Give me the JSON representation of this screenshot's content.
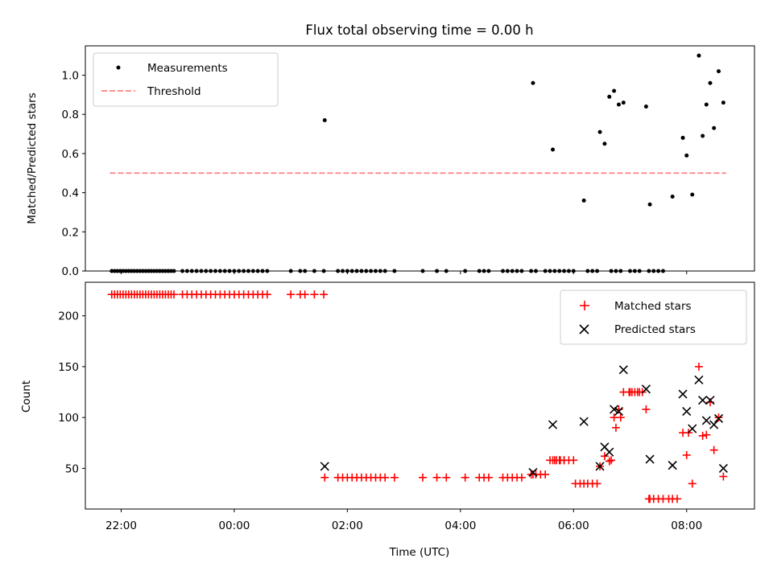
{
  "chart_data": [
    {
      "type": "scatter",
      "title": "Flux total observing time = 0.00 h",
      "xlabel": "",
      "ylabel": "Matched/Predicted stars",
      "xlim": [
        "21:22",
        "09:12"
      ],
      "ylim": [
        0,
        1.15
      ],
      "yticks": [
        0.0,
        0.2,
        0.4,
        0.6,
        0.8,
        1.0
      ],
      "ytick_labels": [
        "0.0",
        "0.2",
        "0.4",
        "0.6",
        "0.8",
        "1.0"
      ],
      "legend": {
        "placement": "upper-left",
        "entries": [
          {
            "label": "Measurements",
            "marker": "dot",
            "color": "#000000"
          },
          {
            "label": "Threshold",
            "marker": "dashed-line",
            "color": "#ff7f7f"
          }
        ]
      },
      "threshold": {
        "value": 0.5,
        "x_start": "21:48",
        "x_end": "08:42"
      },
      "series": [
        {
          "name": "Measurements",
          "color": "#000000",
          "x": [
            "21:50",
            "21:53",
            "21:56",
            "21:59",
            "22:02",
            "22:05",
            "22:08",
            "22:11",
            "22:14",
            "22:17",
            "22:20",
            "22:23",
            "22:26",
            "22:29",
            "22:32",
            "22:35",
            "22:38",
            "22:41",
            "22:44",
            "22:47",
            "22:50",
            "22:53",
            "22:56",
            "23:05",
            "23:10",
            "23:15",
            "23:20",
            "23:25",
            "23:30",
            "23:35",
            "23:40",
            "23:45",
            "23:50",
            "23:55",
            "00:00",
            "00:05",
            "00:10",
            "00:15",
            "00:20",
            "00:25",
            "00:30",
            "00:35",
            "01:00",
            "01:10",
            "01:15",
            "01:25",
            "01:35",
            "01:50",
            "01:55",
            "02:00",
            "02:05",
            "02:10",
            "02:15",
            "02:20",
            "02:25",
            "02:30",
            "02:35",
            "02:40",
            "02:50",
            "03:20",
            "03:35",
            "03:45",
            "04:05",
            "04:20",
            "04:25",
            "04:30",
            "04:45",
            "04:50",
            "04:55",
            "05:00",
            "05:05",
            "05:15",
            "05:20",
            "05:30",
            "05:35",
            "05:40",
            "05:45",
            "05:50",
            "05:55",
            "06:00",
            "06:15",
            "06:20",
            "06:25",
            "06:40",
            "06:45",
            "06:50",
            "07:00",
            "07:05",
            "07:10",
            "07:20",
            "07:25",
            "07:30",
            "07:35"
          ],
          "y": [
            0,
            0,
            0,
            0,
            0,
            0,
            0,
            0,
            0,
            0,
            0,
            0,
            0,
            0,
            0,
            0,
            0,
            0,
            0,
            0,
            0,
            0,
            0,
            0,
            0,
            0,
            0,
            0,
            0,
            0,
            0,
            0,
            0,
            0,
            0,
            0,
            0,
            0,
            0,
            0,
            0,
            0,
            0,
            0,
            0,
            0,
            0,
            0,
            0,
            0,
            0,
            0,
            0,
            0,
            0,
            0,
            0,
            0,
            0,
            0,
            0,
            0,
            0,
            0,
            0,
            0,
            0,
            0,
            0,
            0,
            0,
            0,
            0,
            0,
            0,
            0,
            0,
            0,
            0,
            0,
            0,
            0,
            0,
            0,
            0,
            0,
            0,
            0,
            0,
            0,
            0,
            0,
            0
          ]
        },
        {
          "name": "Measurements",
          "color": "#000000",
          "x": [
            "01:36",
            "05:17",
            "05:38",
            "06:11",
            "06:28",
            "06:33",
            "06:38",
            "06:43",
            "06:48",
            "06:53",
            "07:17",
            "07:21",
            "07:45",
            "07:56",
            "08:00",
            "08:06",
            "08:13",
            "08:17",
            "08:21",
            "08:25",
            "08:29",
            "08:34",
            "08:39"
          ],
          "y": [
            0.77,
            0.96,
            0.62,
            0.36,
            0.71,
            0.65,
            0.89,
            0.92,
            0.85,
            0.86,
            0.84,
            0.34,
            0.38,
            0.68,
            0.59,
            0.39,
            1.1,
            0.69,
            0.85,
            0.96,
            0.73,
            1.02,
            0.86
          ]
        }
      ]
    },
    {
      "type": "scatter",
      "title": "",
      "xlabel": "Time (UTC)",
      "ylabel": "Count",
      "xlim": [
        "21:22",
        "09:12"
      ],
      "xticks": [
        "22:00",
        "00:00",
        "02:00",
        "04:00",
        "06:00",
        "08:00"
      ],
      "ylim": [
        10,
        233
      ],
      "yticks": [
        50,
        100,
        150,
        200
      ],
      "ytick_labels": [
        "50",
        "100",
        "150",
        "200"
      ],
      "legend": {
        "placement": "upper-right",
        "entries": [
          {
            "label": "Matched stars",
            "marker": "plus",
            "color": "#ff0000"
          },
          {
            "label": "Predicted stars",
            "marker": "x",
            "color": "#000000"
          }
        ]
      },
      "series": [
        {
          "name": "Matched stars",
          "marker": "plus",
          "color": "#ff0000",
          "x": [
            "21:50",
            "21:53",
            "21:56",
            "21:59",
            "22:02",
            "22:05",
            "22:08",
            "22:11",
            "22:14",
            "22:17",
            "22:20",
            "22:23",
            "22:26",
            "22:29",
            "22:32",
            "22:35",
            "22:38",
            "22:41",
            "22:44",
            "22:47",
            "22:50",
            "22:53",
            "22:56",
            "23:05",
            "23:10",
            "23:15",
            "23:20",
            "23:25",
            "23:30",
            "23:35",
            "23:40",
            "23:45",
            "23:50",
            "23:55",
            "00:00",
            "00:05",
            "00:10",
            "00:15",
            "00:20",
            "00:25",
            "00:30",
            "00:35",
            "01:00",
            "01:10",
            "01:15",
            "01:25",
            "01:35",
            "01:50",
            "01:55",
            "02:00",
            "02:05",
            "02:10",
            "02:15",
            "02:20",
            "02:25",
            "02:30",
            "02:35",
            "02:40",
            "02:50",
            "03:20",
            "03:35",
            "03:45",
            "04:05",
            "04:20",
            "04:25",
            "04:30",
            "04:45",
            "04:50",
            "04:55",
            "05:00",
            "05:05",
            "05:15",
            "05:20",
            "05:30",
            "05:35",
            "05:40",
            "05:45",
            "05:50",
            "05:55",
            "06:00",
            "06:15",
            "06:20",
            "06:25",
            "06:40",
            "06:45",
            "06:50",
            "07:00",
            "07:05",
            "07:10",
            "07:20",
            "07:25",
            "07:30",
            "07:35",
            "01:36",
            "05:17",
            "05:38",
            "06:11",
            "06:28",
            "06:33",
            "06:38",
            "06:43",
            "06:48",
            "06:53",
            "07:17",
            "07:21",
            "07:45",
            "07:56",
            "08:00",
            "08:06",
            "08:13",
            "08:17",
            "08:21",
            "08:25",
            "08:29",
            "08:34",
            "08:39",
            "05:25",
            "05:42",
            "05:46",
            "05:50",
            "06:02",
            "06:07",
            "06:59",
            "07:02",
            "07:08",
            "07:13",
            "07:41",
            "07:50",
            "08:02"
          ],
          "y": [
            221,
            221,
            221,
            221,
            221,
            221,
            221,
            221,
            221,
            221,
            221,
            221,
            221,
            221,
            221,
            221,
            221,
            221,
            221,
            221,
            221,
            221,
            221,
            221,
            221,
            221,
            221,
            221,
            221,
            221,
            221,
            221,
            221,
            221,
            221,
            221,
            221,
            221,
            221,
            221,
            221,
            221,
            221,
            221,
            221,
            221,
            221,
            41,
            41,
            41,
            41,
            41,
            41,
            41,
            41,
            41,
            41,
            41,
            41,
            41,
            41,
            41,
            41,
            41,
            41,
            41,
            41,
            41,
            41,
            41,
            41,
            44,
            44,
            44,
            58,
            58,
            58,
            58,
            58,
            58,
            35,
            35,
            35,
            58,
            90,
            100,
            125,
            125,
            125,
            20,
            20,
            20,
            20,
            41,
            44,
            58,
            35,
            52,
            62,
            57,
            100,
            108,
            125,
            108,
            20,
            20,
            85,
            63,
            35,
            150,
            82,
            83,
            115,
            68,
            100,
            42,
            44,
            58,
            58,
            58,
            35,
            35,
            125,
            125,
            125,
            125,
            20,
            20,
            85
          ]
        },
        {
          "name": "Predicted stars",
          "marker": "x",
          "color": "#000000",
          "x": [
            "01:36",
            "05:17",
            "05:38",
            "06:11",
            "06:28",
            "06:33",
            "06:38",
            "06:43",
            "06:48",
            "06:53",
            "07:17",
            "07:21",
            "07:45",
            "07:56",
            "08:00",
            "08:06",
            "08:13",
            "08:17",
            "08:21",
            "08:25",
            "08:29",
            "08:34",
            "08:39"
          ],
          "y": [
            52,
            46,
            93,
            96,
            52,
            71,
            66,
            108,
            106,
            147,
            128,
            59,
            53,
            123,
            106,
            89,
            137,
            117,
            97,
            117,
            93,
            99,
            50
          ]
        }
      ]
    }
  ]
}
